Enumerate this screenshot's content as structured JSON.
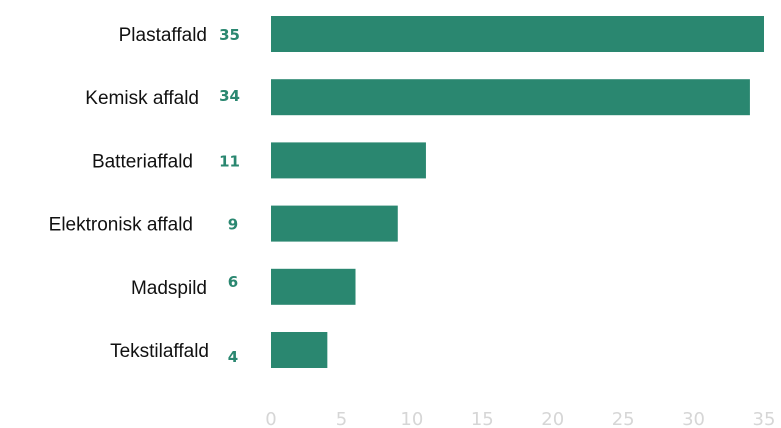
{
  "chart_data": {
    "type": "bar",
    "orientation": "horizontal",
    "categories": [
      "Plastaffald",
      "Kemisk affald",
      "Batteriaffald",
      "Elektronisk affald",
      "Madspild",
      "Tekstilaffald"
    ],
    "values": [
      35,
      34,
      11,
      9,
      6,
      4
    ],
    "value_labels": [
      "35",
      "34",
      "11",
      "9",
      "6",
      "4"
    ],
    "x_ticks": [
      "0",
      "5",
      "10",
      "15",
      "20",
      "25",
      "30",
      "35"
    ],
    "xlim": [
      0,
      35
    ],
    "grid": false,
    "legend": "none",
    "title": "",
    "xlabel": "",
    "ylabel": "",
    "colors": {
      "bar": "#2a8770",
      "value_label": "#2a8770",
      "tick_label": "#d6d6d6",
      "category_label": "#111111"
    }
  }
}
